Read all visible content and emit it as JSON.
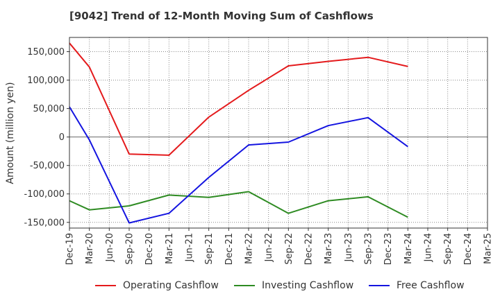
{
  "chart_data": {
    "type": "line",
    "title": "[9042]  Trend of 12-Month Moving Sum of Cashflows",
    "xlabel": "",
    "ylabel": "Amount (million yen)",
    "categories": [
      "Dec-19",
      "Mar-20",
      "Jun-20",
      "Sep-20",
      "Dec-20",
      "Mar-21",
      "Jun-21",
      "Sep-21",
      "Dec-21",
      "Mar-22",
      "Jun-22",
      "Sep-22",
      "Dec-22",
      "Mar-23",
      "Jun-23",
      "Sep-23",
      "Dec-23",
      "Mar-24",
      "Jun-24",
      "Sep-24",
      "Dec-24",
      "Mar-25"
    ],
    "y_ticks": [
      150000,
      100000,
      50000,
      0,
      -50000,
      -100000,
      -150000
    ],
    "y_tick_labels": [
      "150,000",
      "100,000",
      "50,000",
      "0",
      "-50,000",
      "-100,000",
      "-150,000"
    ],
    "ylim": [
      -160000,
      175000
    ],
    "grid": true,
    "legend_position": "bottom",
    "series": [
      {
        "name": "Operating Cashflow",
        "color": "#e41a1c",
        "values": [
          165000,
          123000,
          null,
          -30000,
          null,
          -32000,
          null,
          35000,
          null,
          82000,
          null,
          125000,
          null,
          133000,
          null,
          140000,
          null,
          124000,
          null,
          null,
          null,
          null
        ]
      },
      {
        "name": "Investing Cashflow",
        "color": "#2e8b22",
        "values": [
          -112000,
          -128000,
          null,
          -121000,
          null,
          -102000,
          null,
          -106000,
          null,
          -96000,
          null,
          -134000,
          null,
          -112000,
          null,
          -105000,
          null,
          -141000,
          null,
          null,
          null,
          null
        ]
      },
      {
        "name": "Free Cashflow",
        "color": "#1414e0",
        "values": [
          53000,
          -5000,
          null,
          -151000,
          null,
          -134000,
          null,
          -71000,
          null,
          -14000,
          null,
          -9000,
          null,
          20000,
          null,
          34000,
          null,
          -17000,
          null,
          null,
          null,
          null
        ]
      }
    ]
  }
}
